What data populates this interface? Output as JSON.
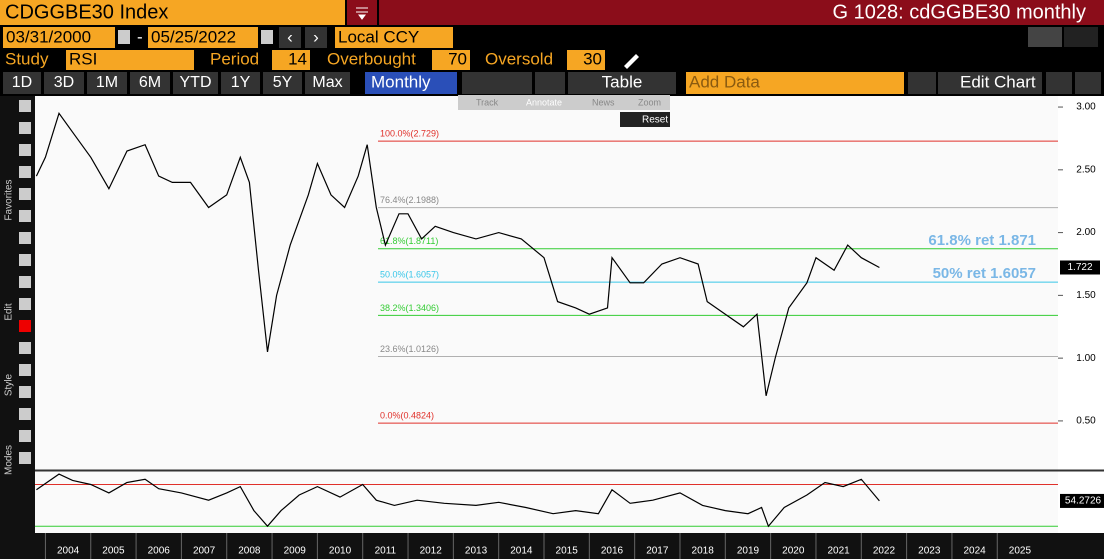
{
  "header": {
    "security": "CDGGBE30 Index",
    "window": "G 1028: cdGGBE30 monthly",
    "start_date": "03/31/2000",
    "end_date": "05/25/2022",
    "currency": "Local CCY"
  },
  "study": {
    "label": "Study",
    "name": "RSI",
    "period_label": "Period",
    "period": 14,
    "overbought_label": "Overbought",
    "overbought": 70,
    "oversold_label": "Oversold",
    "oversold": 30
  },
  "toolbar": {
    "ranges": [
      "1D",
      "3D",
      "1M",
      "6M",
      "YTD",
      "1Y",
      "5Y",
      "Max"
    ],
    "frequency": "Monthly",
    "table": "Table",
    "add_data": "Add Data",
    "edit_chart": "Edit Chart"
  },
  "floating_tools": [
    "Track",
    "Annotate",
    "News",
    "Zoom"
  ],
  "reset": "Reset",
  "side_sections": [
    "Favorites",
    "Edit",
    "Style",
    "Modes"
  ],
  "chart_data": [
    {
      "type": "line",
      "name": "price",
      "x": [
        2003.8,
        2004.0,
        2004.3,
        2004.6,
        2005.0,
        2005.4,
        2005.8,
        2006.2,
        2006.5,
        2006.8,
        2007.2,
        2007.6,
        2008.0,
        2008.3,
        2008.5,
        2008.7,
        2008.9,
        2009.1,
        2009.4,
        2009.8,
        2010.0,
        2010.3,
        2010.6,
        2010.9,
        2011.1,
        2011.3,
        2011.5,
        2011.8,
        2012.0,
        2012.3,
        2012.6,
        2013.0,
        2013.5,
        2014.0,
        2014.5,
        2015.0,
        2015.3,
        2015.7,
        2016.0,
        2016.4,
        2016.5,
        2016.9,
        2017.2,
        2017.6,
        2018.0,
        2018.4,
        2018.6,
        2019.0,
        2019.4,
        2019.7,
        2019.9,
        2020.1,
        2020.4,
        2020.8,
        2021.0,
        2021.4,
        2021.7,
        2022.0,
        2022.4
      ],
      "values": [
        2.45,
        2.6,
        2.95,
        2.8,
        2.6,
        2.35,
        2.65,
        2.7,
        2.45,
        2.4,
        2.4,
        2.2,
        2.3,
        2.6,
        2.4,
        1.7,
        1.05,
        1.5,
        1.9,
        2.3,
        2.55,
        2.3,
        2.2,
        2.45,
        2.7,
        2.2,
        1.9,
        2.15,
        2.15,
        1.95,
        2.05,
        2.0,
        1.95,
        2.0,
        1.95,
        1.8,
        1.45,
        1.4,
        1.35,
        1.4,
        1.8,
        1.6,
        1.6,
        1.75,
        1.8,
        1.75,
        1.45,
        1.35,
        1.25,
        1.35,
        0.7,
        1.0,
        1.4,
        1.6,
        1.8,
        1.7,
        1.9,
        1.8,
        1.722
      ],
      "color": "#000000",
      "last_value": 1.722,
      "xlim": [
        2003.77,
        2026.34
      ],
      "xticks": [
        2004,
        2005,
        2006,
        2007,
        2008,
        2009,
        2010,
        2011,
        2012,
        2013,
        2014,
        2015,
        2016,
        2017,
        2018,
        2019,
        2020,
        2021,
        2022,
        2023,
        2024,
        2025
      ],
      "ylim": [
        0.109,
        3.088
      ],
      "yticks": [
        {
          "value": 0.5,
          "label": "0.50"
        },
        {
          "value": 1.0,
          "label": "1.00"
        },
        {
          "value": 1.5,
          "label": "1.50"
        },
        {
          "value": 2.0,
          "label": "2.00"
        },
        {
          "value": 2.5,
          "label": "2.50"
        },
        {
          "value": 3.0,
          "label": "3.00"
        }
      ],
      "levels": [
        {
          "value": 2.729,
          "label": "100.0%(2.729)",
          "color": "#e0302a"
        },
        {
          "value": 2.1988,
          "label": "76.4%(2.1988)",
          "color": "#b0b0b0"
        },
        {
          "value": 1.8711,
          "label": "61.8%(1.8711)",
          "color": "#33cc33"
        },
        {
          "value": 1.6057,
          "label": "50.0%(1.6057)",
          "color": "#38c6e8"
        },
        {
          "value": 1.3406,
          "label": "38.2%(1.3406)",
          "color": "#33cc33"
        },
        {
          "value": 1.0126,
          "label": "23.6%(1.0126)",
          "color": "#b0b0b0"
        },
        {
          "value": 0.4824,
          "label": "0.0%(0.4824)",
          "color": "#e0302a"
        }
      ],
      "annotations": [
        {
          "text": "61.8% ret 1.871",
          "value": 1.871
        },
        {
          "text": "50% ret 1.6057",
          "value": 1.6057
        }
      ]
    },
    {
      "type": "line",
      "name": "rsi",
      "x": [
        2003.8,
        2004.3,
        2004.6,
        2005.0,
        2005.4,
        2005.8,
        2006.2,
        2006.5,
        2007.0,
        2007.6,
        2008.0,
        2008.3,
        2008.6,
        2008.9,
        2009.2,
        2009.6,
        2010.0,
        2010.5,
        2011.0,
        2011.3,
        2011.7,
        2012.2,
        2012.8,
        2013.5,
        2014.0,
        2014.6,
        2015.2,
        2015.7,
        2016.2,
        2016.5,
        2016.9,
        2017.4,
        2018.0,
        2018.5,
        2019.0,
        2019.5,
        2019.8,
        2019.95,
        2020.3,
        2020.8,
        2021.2,
        2021.6,
        2022.0,
        2022.4
      ],
      "values": [
        65,
        80,
        74,
        70,
        62,
        72,
        75,
        66,
        62,
        55,
        62,
        68,
        45,
        30,
        45,
        60,
        68,
        58,
        70,
        55,
        50,
        55,
        52,
        50,
        53,
        48,
        42,
        45,
        42,
        65,
        52,
        55,
        62,
        50,
        45,
        42,
        48,
        30,
        48,
        60,
        72,
        68,
        75,
        54.2726
      ],
      "color": "#000000",
      "last_value": 54.2726,
      "ylim": [
        23.5,
        83
      ]
    }
  ]
}
